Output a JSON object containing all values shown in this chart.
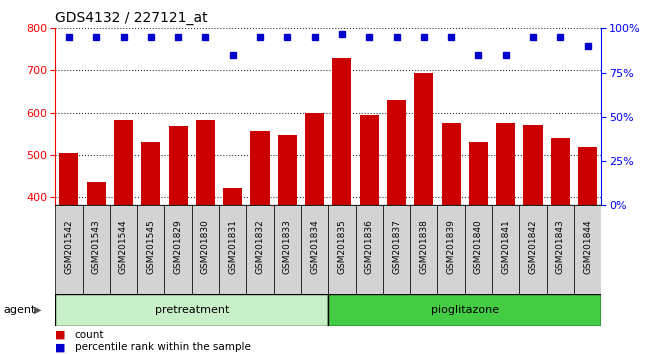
{
  "title": "GDS4132 / 227121_at",
  "samples": [
    "GSM201542",
    "GSM201543",
    "GSM201544",
    "GSM201545",
    "GSM201829",
    "GSM201830",
    "GSM201831",
    "GSM201832",
    "GSM201833",
    "GSM201834",
    "GSM201835",
    "GSM201836",
    "GSM201837",
    "GSM201838",
    "GSM201839",
    "GSM201840",
    "GSM201841",
    "GSM201842",
    "GSM201843",
    "GSM201844"
  ],
  "counts": [
    505,
    435,
    582,
    530,
    568,
    582,
    420,
    557,
    548,
    600,
    730,
    595,
    630,
    695,
    575,
    530,
    575,
    570,
    540,
    518
  ],
  "percentile_ranks": [
    95,
    95,
    95,
    95,
    95,
    95,
    85,
    95,
    95,
    95,
    97,
    95,
    95,
    95,
    95,
    85,
    85,
    95,
    95,
    90
  ],
  "group_split": 10,
  "group1_label": "pretreatment",
  "group2_label": "pioglitazone",
  "group1_color": "#c8f0c8",
  "group2_color": "#44cc44",
  "bar_color": "#cc0000",
  "dot_color": "#0000cc",
  "ylim_left": [
    380,
    800
  ],
  "ylim_right": [
    0,
    100
  ],
  "yticks_left": [
    400,
    500,
    600,
    700,
    800
  ],
  "yticks_right": [
    0,
    25,
    50,
    75,
    100
  ],
  "title_fontsize": 10,
  "agent_label": "agent"
}
